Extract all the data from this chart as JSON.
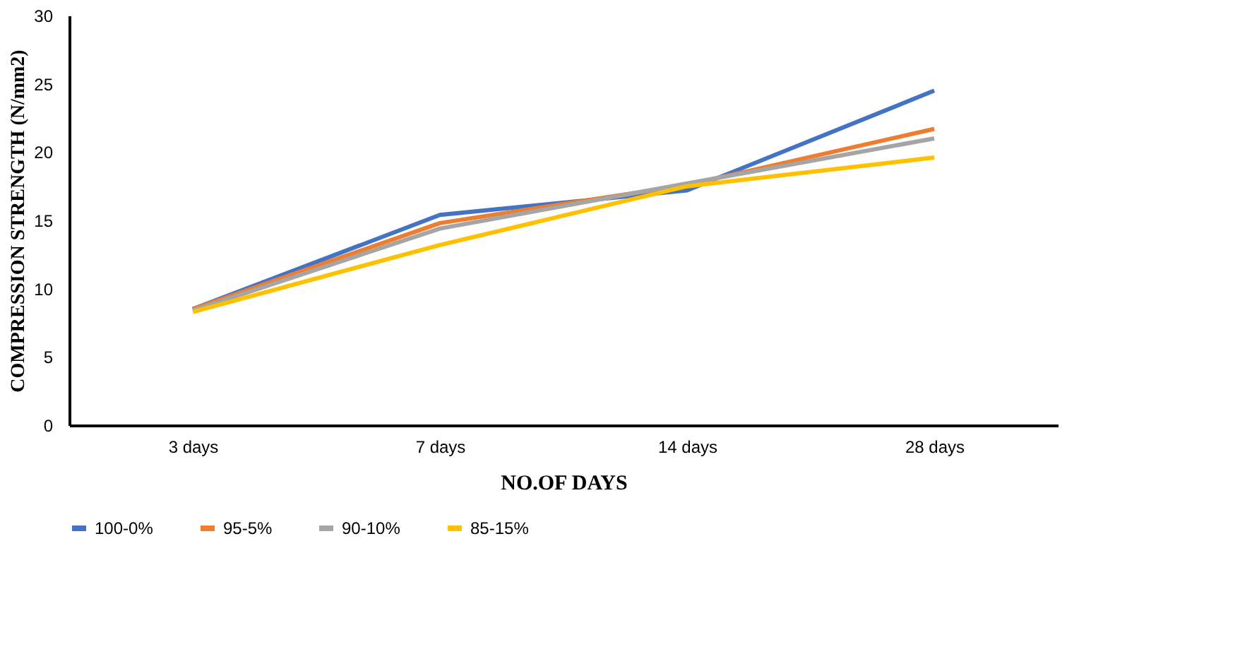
{
  "chart_data": {
    "type": "line",
    "xlabel": "NO.OF DAYS",
    "ylabel": "COMPRESSION STRENGTH (N/mm2)",
    "categories": [
      "3 days",
      "7 days",
      "14 days",
      "28 days"
    ],
    "series": [
      {
        "name": "100-0%",
        "color": "#4472c4",
        "values": [
          8.5,
          15.4,
          17.2,
          24.5
        ]
      },
      {
        "name": "95-5%",
        "color": "#ed7d31",
        "values": [
          8.5,
          14.8,
          17.6,
          21.7
        ]
      },
      {
        "name": "90-10%",
        "color": "#a5a5a5",
        "values": [
          8.4,
          14.4,
          17.7,
          21.0
        ]
      },
      {
        "name": "85-15%",
        "color": "#ffc000",
        "values": [
          8.3,
          13.2,
          17.5,
          19.6
        ]
      }
    ],
    "ylim": [
      0,
      30
    ],
    "yticks": [
      0,
      5,
      10,
      15,
      20,
      25,
      30
    ],
    "grid": false,
    "legend": "bottom",
    "marker": "none",
    "line_style": "solid"
  }
}
